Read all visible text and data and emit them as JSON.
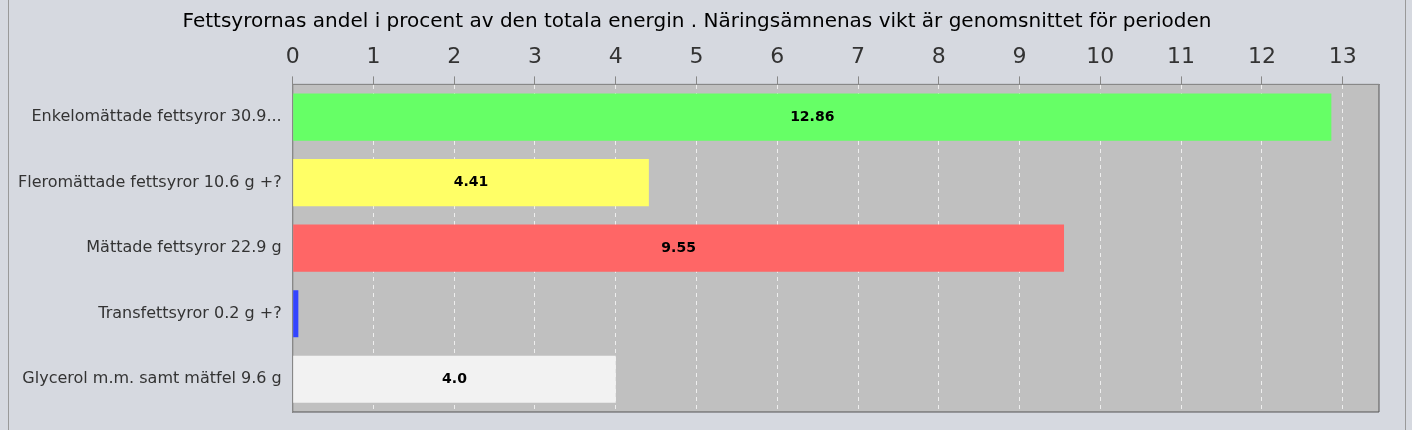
{
  "chart_data": {
    "type": "bar",
    "orientation": "horizontal",
    "title": "Fettsyrornas andel i procent av den totala energin . Näringsämnenas vikt är genomsnittet för perioden",
    "categories": [
      "Enkelomättade fettsyror 30.9...",
      "Fleromättade fettsyror 10.6 g +?",
      "Mättade fettsyror 22.9 g",
      "Transfettsyror 0.2 g +?",
      "Glycerol m.m. samt mätfel 9.6 g"
    ],
    "values": [
      12.86,
      4.41,
      9.55,
      0.07,
      4.0
    ],
    "colors": [
      "#66ff66",
      "#ffff66",
      "#ff6666",
      "#3344ff",
      "#f2f2f2"
    ],
    "value_labels": [
      "12.86",
      "4.41",
      "9.55",
      null,
      "4.0"
    ],
    "xlim": [
      0,
      13.45
    ],
    "xticks": [
      0,
      1,
      2,
      3,
      4,
      5,
      6,
      7,
      8,
      9,
      10,
      11,
      12,
      13
    ],
    "grid": "x",
    "legend": false
  }
}
